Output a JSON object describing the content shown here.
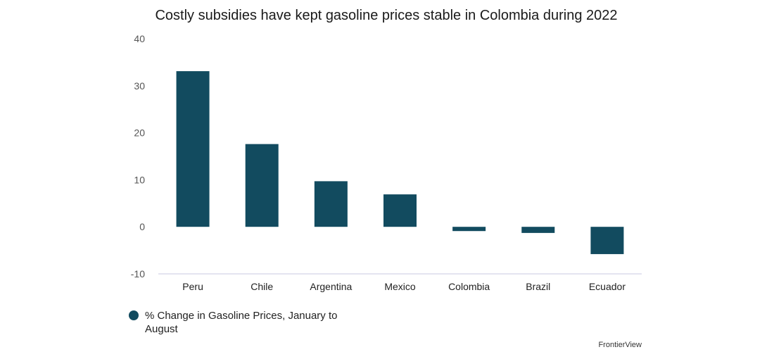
{
  "chart_data": {
    "type": "bar",
    "title": "Costly subsidies have kept gasoline prices stable in Colombia during 2022",
    "categories": [
      "Peru",
      "Chile",
      "Argentina",
      "Mexico",
      "Colombia",
      "Brazil",
      "Ecuador"
    ],
    "series": [
      {
        "name": "% Change in Gasoline Prices, January to August",
        "values": [
          33.1,
          17.6,
          9.7,
          6.9,
          -0.9,
          -1.3,
          -5.8
        ],
        "color": "#124b5f"
      }
    ],
    "yticks": [
      -10,
      0,
      10,
      20,
      30,
      40
    ],
    "ylim": [
      -10,
      40
    ],
    "grid": false,
    "legend_position": "bottom-left"
  },
  "legend": {
    "line1": "% Change in Gasoline Prices, January to",
    "line2": "August"
  },
  "source": "FrontierView",
  "colors": {
    "bar": "#124b5f",
    "axis": "#c8c8e0"
  }
}
